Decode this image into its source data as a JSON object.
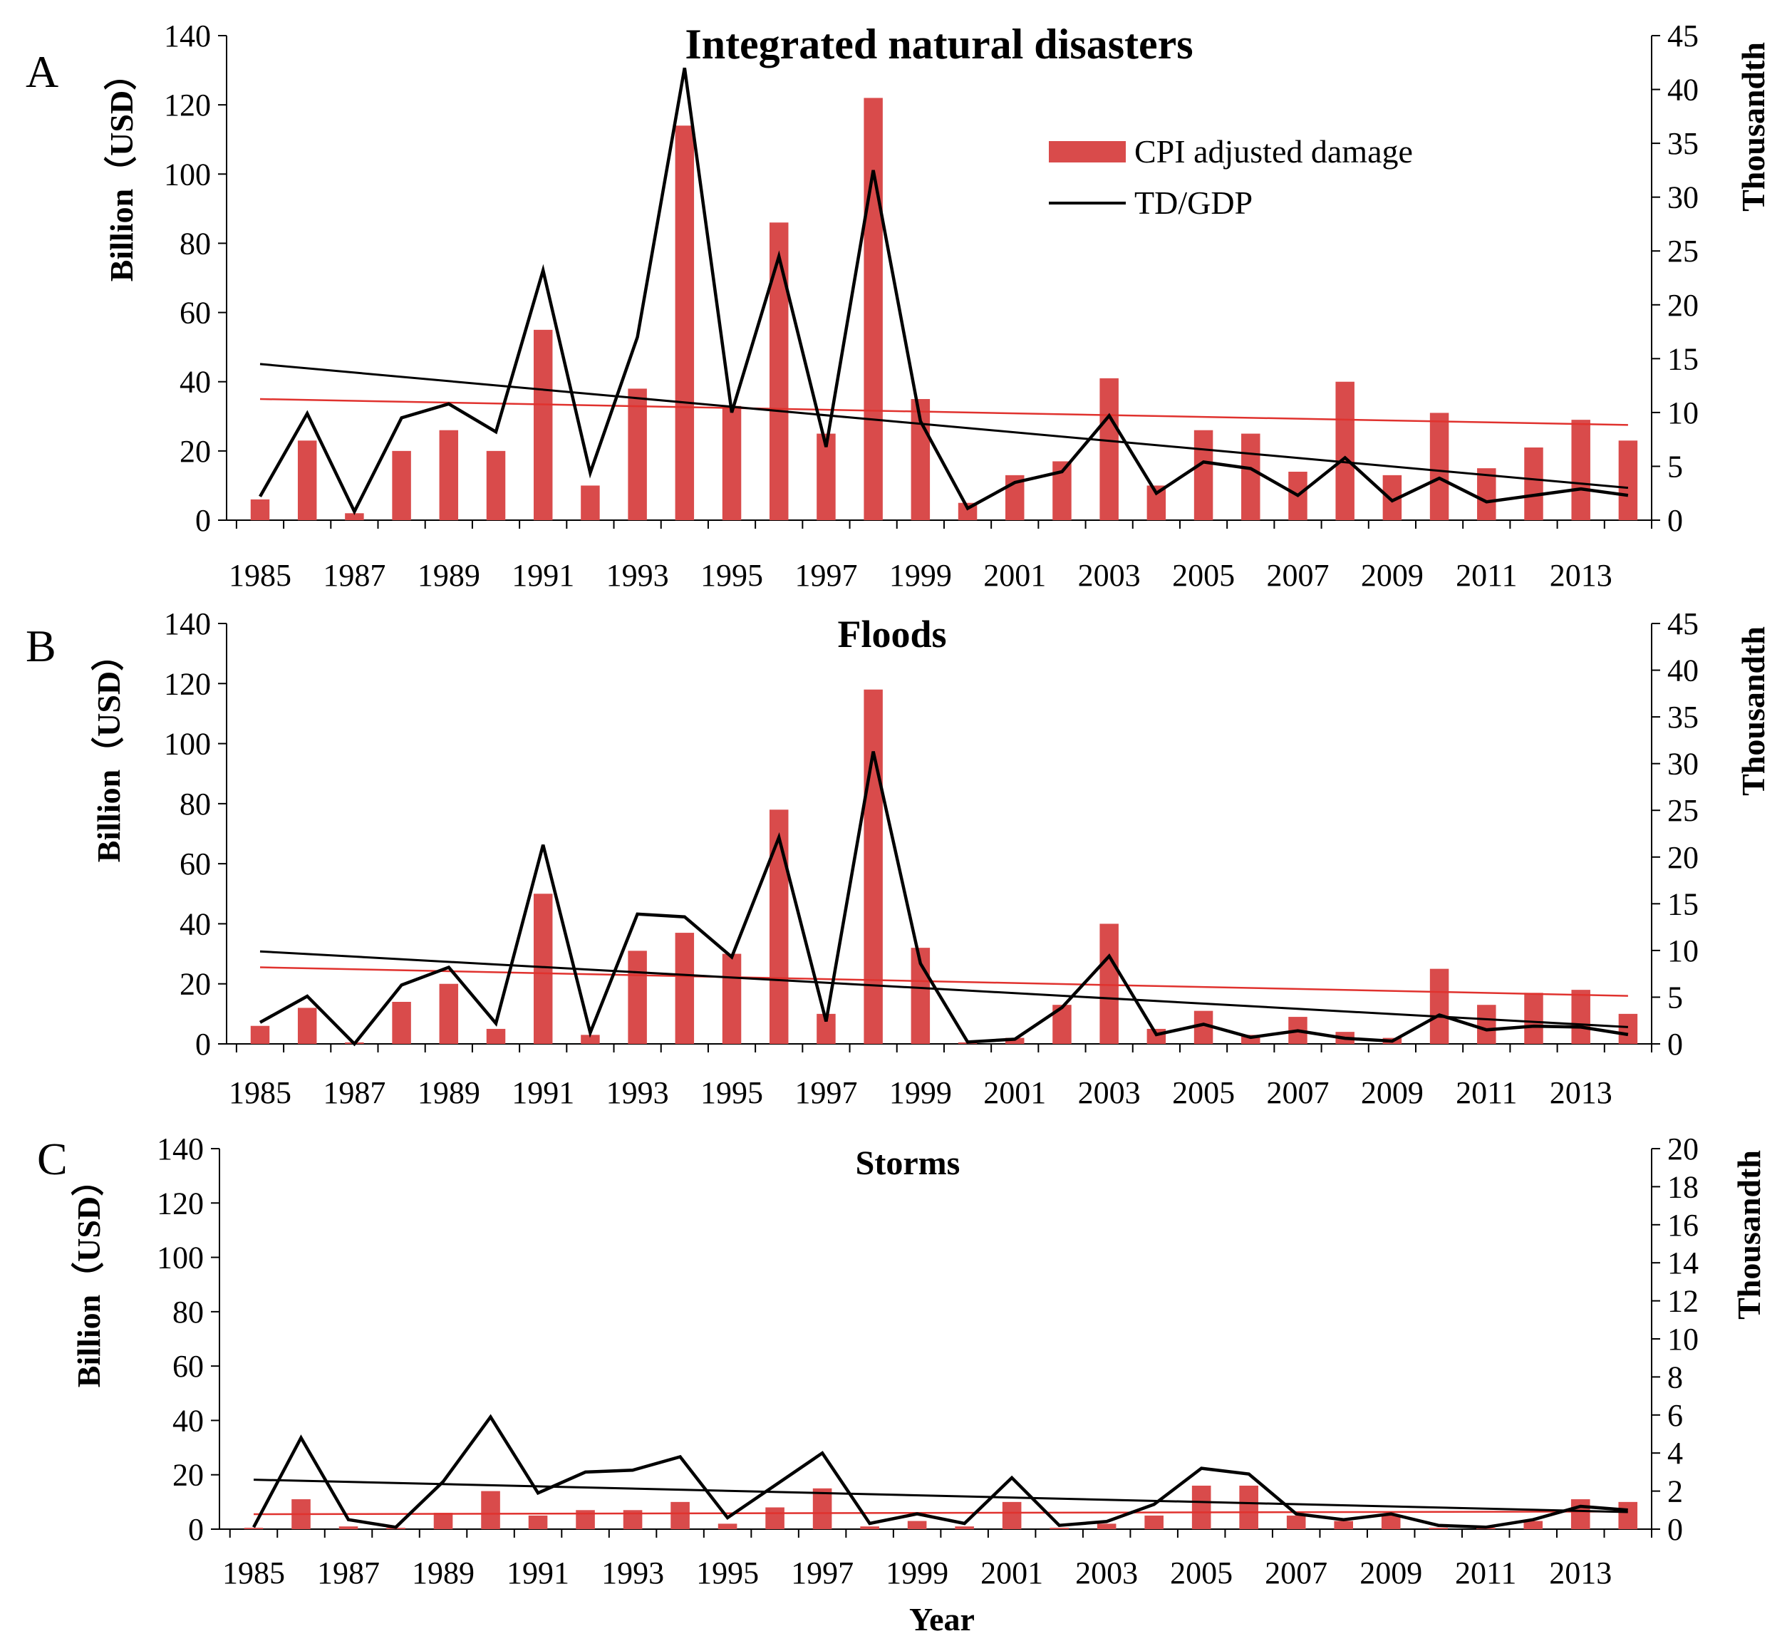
{
  "colors": {
    "bar": "#d94b4b",
    "line": "#000000",
    "trend_bar": "#e0322e",
    "trend_line": "#000000"
  },
  "chart_data": [
    {
      "type": "bar",
      "panel": "A",
      "title": "Integrated natural disasters",
      "ylabel": "Billion（USD）",
      "y2label": "Thousandth",
      "xlabel": "",
      "ylim": [
        0,
        140
      ],
      "yticks": [
        0,
        20,
        40,
        60,
        80,
        100,
        120,
        140
      ],
      "y2lim": [
        0,
        45
      ],
      "y2ticks": [
        0,
        5,
        10,
        15,
        20,
        25,
        30,
        35,
        40,
        45
      ],
      "categories": [
        1985,
        1986,
        1987,
        1988,
        1989,
        1990,
        1991,
        1992,
        1993,
        1994,
        1995,
        1996,
        1997,
        1998,
        1999,
        2000,
        2001,
        2002,
        2003,
        2004,
        2005,
        2006,
        2007,
        2008,
        2009,
        2010,
        2011,
        2012,
        2013,
        2014
      ],
      "xtick_labels": [
        "1985",
        "1987",
        "1989",
        "1991",
        "1993",
        "1995",
        "1997",
        "1999",
        "2001",
        "2003",
        "2005",
        "2007",
        "2009",
        "2011",
        "2013"
      ],
      "legend": {
        "position": "top-center",
        "entries": [
          "CPI adjusted damage",
          "TD/GDP"
        ]
      },
      "series": [
        {
          "name": "CPI adjusted damage",
          "kind": "bar",
          "axis": "left",
          "values": [
            6,
            23,
            2,
            20,
            26,
            20,
            55,
            10,
            38,
            114,
            33,
            86,
            25,
            122,
            35,
            5,
            13,
            17,
            41,
            10,
            26,
            25,
            14,
            40,
            13,
            31,
            15,
            21,
            29,
            23
          ]
        },
        {
          "name": "TD/GDP",
          "kind": "line",
          "axis": "right",
          "values": [
            2.2,
            9.9,
            0.8,
            9.5,
            10.8,
            8.2,
            23.2,
            4.4,
            17.0,
            42.0,
            10.0,
            24.5,
            6.8,
            32.5,
            9.2,
            1.1,
            3.5,
            4.5,
            9.7,
            2.5,
            5.4,
            4.8,
            2.3,
            5.8,
            1.8,
            3.9,
            1.7,
            2.3,
            2.9,
            2.3
          ]
        }
      ],
      "trends": [
        {
          "name": "damage trend",
          "axis": "left",
          "from": 35,
          "to": 27.5
        },
        {
          "name": "TD/GDP trend",
          "axis": "right",
          "from": 14.5,
          "to": 3.0
        }
      ]
    },
    {
      "type": "bar",
      "panel": "B",
      "title": "Floods",
      "ylabel": "Billion（USD）",
      "y2label": "Thousandth",
      "xlabel": "",
      "ylim": [
        0,
        140
      ],
      "yticks": [
        0,
        20,
        40,
        60,
        80,
        100,
        120,
        140
      ],
      "y2lim": [
        0,
        45
      ],
      "y2ticks": [
        0,
        5,
        10,
        15,
        20,
        25,
        30,
        35,
        40,
        45
      ],
      "categories": [
        1985,
        1986,
        1987,
        1988,
        1989,
        1990,
        1991,
        1992,
        1993,
        1994,
        1995,
        1996,
        1997,
        1998,
        1999,
        2000,
        2001,
        2002,
        2003,
        2004,
        2005,
        2006,
        2007,
        2008,
        2009,
        2010,
        2011,
        2012,
        2013,
        2014
      ],
      "xtick_labels": [
        "1985",
        "1987",
        "1989",
        "1991",
        "1993",
        "1995",
        "1997",
        "1999",
        "2001",
        "2003",
        "2005",
        "2007",
        "2009",
        "2011",
        "2013"
      ],
      "series": [
        {
          "name": "CPI adjusted damage",
          "kind": "bar",
          "axis": "left",
          "values": [
            6,
            12,
            0.5,
            14,
            20,
            5,
            50,
            3,
            31,
            37,
            30,
            78,
            10,
            118,
            32,
            0.5,
            2,
            13,
            40,
            5,
            11,
            3,
            9,
            4,
            2,
            25,
            13,
            17,
            18,
            10
          ]
        },
        {
          "name": "TD/GDP",
          "kind": "line",
          "axis": "right",
          "values": [
            2.3,
            5.1,
            0,
            6.3,
            8.2,
            2.2,
            21.3,
            1.2,
            13.9,
            13.6,
            9.3,
            22.1,
            2.4,
            31.3,
            8.6,
            0.2,
            0.5,
            3.9,
            9.4,
            1.0,
            2.1,
            0.7,
            1.4,
            0.6,
            0.3,
            3.1,
            1.5,
            1.9,
            1.8,
            1.0
          ]
        }
      ],
      "trends": [
        {
          "name": "damage trend",
          "axis": "left",
          "from": 25.5,
          "to": 16
        },
        {
          "name": "TD/GDP trend",
          "axis": "right",
          "from": 9.9,
          "to": 1.8
        }
      ]
    },
    {
      "type": "bar",
      "panel": "C",
      "title": "Storms",
      "ylabel": "Billion（USD）",
      "y2label": "Thousandth",
      "xlabel": "Year",
      "ylim": [
        0,
        140
      ],
      "yticks": [
        0,
        20,
        40,
        60,
        80,
        100,
        120,
        140
      ],
      "y2lim": [
        0,
        20
      ],
      "y2ticks": [
        0,
        2,
        4,
        6,
        8,
        10,
        12,
        14,
        16,
        18,
        20
      ],
      "categories": [
        1985,
        1986,
        1987,
        1988,
        1989,
        1990,
        1991,
        1992,
        1993,
        1994,
        1995,
        1996,
        1997,
        1998,
        1999,
        2000,
        2001,
        2002,
        2003,
        2004,
        2005,
        2006,
        2007,
        2008,
        2009,
        2010,
        2011,
        2012,
        2013,
        2014
      ],
      "xtick_labels": [
        "1985",
        "1987",
        "1989",
        "1991",
        "1993",
        "1995",
        "1997",
        "1999",
        "2001",
        "2003",
        "2005",
        "2007",
        "2009",
        "2011",
        "2013"
      ],
      "series": [
        {
          "name": "CPI adjusted damage",
          "kind": "bar",
          "axis": "left",
          "values": [
            0.5,
            11,
            1,
            0.5,
            6,
            14,
            5,
            7,
            7,
            10,
            2,
            8,
            15,
            1,
            3,
            1,
            10,
            0.5,
            2,
            5,
            16,
            16,
            5,
            3,
            5,
            0.5,
            0.5,
            3,
            11,
            10
          ]
        },
        {
          "name": "TD/GDP",
          "kind": "line",
          "axis": "right",
          "values": [
            0.1,
            4.8,
            0.5,
            0.1,
            2.5,
            5.9,
            1.9,
            3.0,
            3.1,
            3.8,
            0.6,
            2.3,
            4.0,
            0.3,
            0.8,
            0.3,
            2.7,
            0.2,
            0.4,
            1.3,
            3.2,
            2.9,
            0.8,
            0.5,
            0.8,
            0.2,
            0.1,
            0.5,
            1.2,
            1.0
          ]
        }
      ],
      "trends": [
        {
          "name": "damage trend",
          "axis": "left",
          "from": 5.5,
          "to": 6.5
        },
        {
          "name": "TD/GDP trend",
          "axis": "right",
          "from": 2.6,
          "to": 0.9
        }
      ]
    }
  ]
}
